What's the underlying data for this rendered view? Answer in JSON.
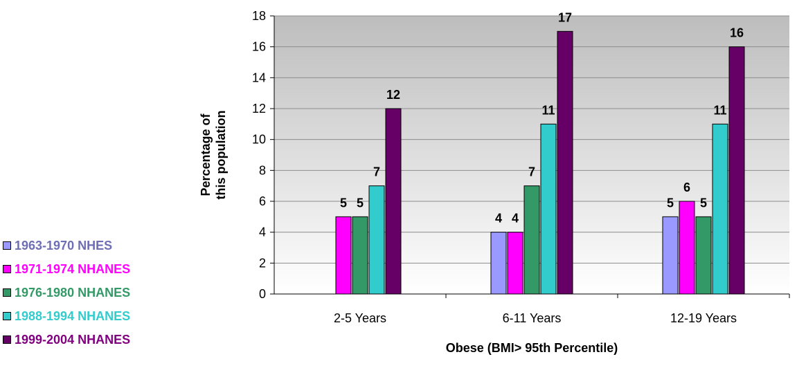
{
  "chart_data": {
    "type": "bar",
    "categories": [
      "2-5 Years",
      "6-11 Years",
      "12-19 Years"
    ],
    "series": [
      {
        "name": "1963-1970 NHES",
        "color": "#9999ff",
        "label_color": "#6e6eb4",
        "values": [
          null,
          4,
          5
        ]
      },
      {
        "name": "1971-1974 NHANES",
        "color": "#ff00ff",
        "label_color": "#ff00ff",
        "values": [
          5,
          4,
          6
        ]
      },
      {
        "name": "1976-1980 NHANES",
        "color": "#339966",
        "label_color": "#339966",
        "values": [
          5,
          7,
          5
        ]
      },
      {
        "name": "1988-1994 NHANES",
        "color": "#33cccc",
        "label_color": "#33cccc",
        "values": [
          7,
          11,
          11
        ]
      },
      {
        "name": "1999-2004 NHANES",
        "color": "#660066",
        "label_color": "#800080",
        "values": [
          12,
          17,
          16
        ]
      }
    ],
    "xlabel": "Obese (BMI> 95th Percentile)",
    "ylabel": [
      "Percentage of",
      "this population"
    ],
    "ylim": [
      0,
      18
    ],
    "yticks": [
      0,
      2,
      4,
      6,
      8,
      10,
      12,
      14,
      16,
      18
    ],
    "grid": true,
    "legend_position": "bottom-left"
  }
}
